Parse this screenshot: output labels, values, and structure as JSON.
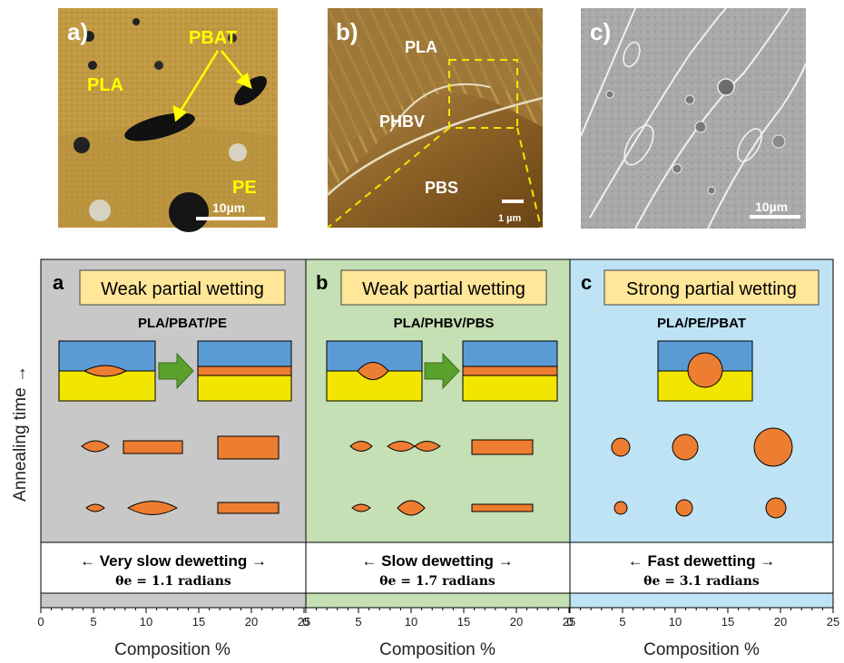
{
  "micrographs": [
    {
      "panel_letter": "a)",
      "phase_labels": [
        "PLA",
        "PBAT",
        "PE"
      ],
      "scale_bar": "10µm"
    },
    {
      "panel_letter": "b)",
      "phase_labels": [
        "PLA",
        "PHBV",
        "PBS"
      ],
      "scale_bar": "1 µm"
    },
    {
      "panel_letter": "c)",
      "phase_labels": [],
      "scale_bar": "10µm"
    }
  ],
  "y_axis_label": "Annealing time →",
  "panels": [
    {
      "letter": "a",
      "regime": "Weak partial wetting",
      "system": "PLA/PBAT/PE",
      "dewetting": "← Very slow dewetting →",
      "angle": "θe = 1.1 radians",
      "bg_color": "#c8c8c8"
    },
    {
      "letter": "b",
      "regime": "Weak partial wetting",
      "system": "PLA/PHBV/PBS",
      "dewetting": "← Slow dewetting →",
      "angle": "θe = 1.7 radians",
      "bg_color": "#c5e0b4"
    },
    {
      "letter": "c",
      "regime": "Strong partial wetting",
      "system": "PLA/PE/PBAT",
      "dewetting": "← Fast dewetting →",
      "angle": "θe = 3.1 radians",
      "bg_color": "#bde3f5"
    }
  ],
  "axes": [
    {
      "ticks": [
        "0",
        "5",
        "10",
        "15",
        "20",
        "25"
      ],
      "label": "Composition %"
    },
    {
      "ticks": [
        "0",
        "5",
        "10",
        "15",
        "20",
        "25"
      ],
      "label": "Composition %"
    },
    {
      "ticks": [
        "0",
        "5",
        "10",
        "15",
        "20",
        "25"
      ],
      "label": "Composition %"
    }
  ],
  "colors": {
    "blue_phase": "#5b9bd5",
    "yellow_phase": "#f2e600",
    "orange_phase": "#ed7d31",
    "arrow_green": "#5aa02c",
    "label_box": "#ffe699"
  }
}
